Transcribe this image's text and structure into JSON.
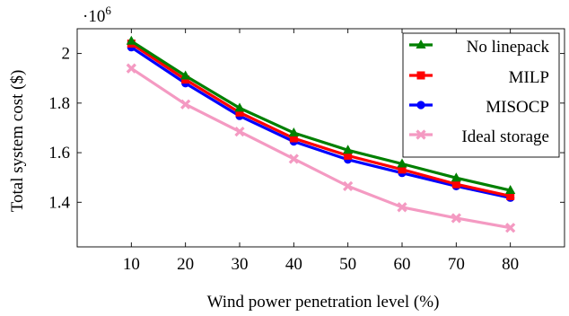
{
  "chart_data": {
    "type": "line",
    "xlabel": "Wind power penetration level (%)",
    "ylabel": "Total system cost ($)",
    "scale_label": "·10",
    "scale_exponent": "6",
    "x": [
      10,
      20,
      30,
      40,
      50,
      60,
      70,
      80
    ],
    "xlim": [
      0,
      90
    ],
    "ylim": [
      1.22,
      2.1
    ],
    "xticks": [
      10,
      20,
      30,
      40,
      50,
      60,
      70,
      80
    ],
    "yticks": [
      1.4,
      1.6,
      1.8,
      2.0
    ],
    "ytick_labels": [
      "1.4",
      "1.6",
      "1.8",
      "2"
    ],
    "grid": false,
    "legend_position": "top-right",
    "series": [
      {
        "name": "No linepack",
        "color": "#008000",
        "marker": "triangle",
        "values": [
          2.05,
          1.91,
          1.78,
          1.68,
          1.61,
          1.555,
          1.498,
          1.448
        ]
      },
      {
        "name": "MILP",
        "color": "#ff0000",
        "marker": "square",
        "values": [
          2.04,
          1.895,
          1.762,
          1.658,
          1.588,
          1.532,
          1.473,
          1.425
        ]
      },
      {
        "name": "MISOCP",
        "color": "#0000ff",
        "marker": "circle",
        "values": [
          2.025,
          1.88,
          1.748,
          1.645,
          1.572,
          1.518,
          1.465,
          1.418
        ]
      },
      {
        "name": "Ideal storage",
        "color": "#f49ac2",
        "marker": "cross",
        "values": [
          1.94,
          1.795,
          1.685,
          1.575,
          1.465,
          1.38,
          1.336,
          1.297
        ]
      }
    ]
  }
}
